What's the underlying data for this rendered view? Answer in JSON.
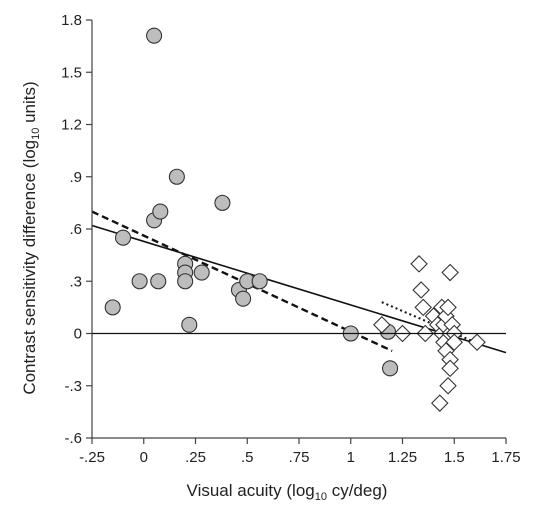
{
  "chart_data": {
    "type": "scatter",
    "xlabel": "Visual acuity (log10 cy/deg)",
    "xlabel_parts": {
      "pre": "Visual acuity (log",
      "sub": "10",
      "post": " cy/deg)"
    },
    "ylabel": "Contrast sensitivity difference (log10 units)",
    "ylabel_parts": {
      "pre": "Contrast sensitivity difference (log",
      "sub": "10",
      "post": " units)"
    },
    "xlim": [
      -0.25,
      1.75
    ],
    "ylim": [
      -0.6,
      1.8
    ],
    "xticks": [
      -0.25,
      0,
      0.25,
      0.5,
      0.75,
      1,
      1.25,
      1.5,
      1.75
    ],
    "xtick_labels": [
      "-.25",
      "0",
      ".25",
      ".5",
      ".75",
      "1",
      "1.25",
      "1.5",
      "1.75"
    ],
    "yticks": [
      -0.6,
      -0.3,
      0,
      0.3,
      0.6,
      0.9,
      1.2,
      1.5,
      1.8
    ],
    "ytick_labels": [
      "-.6",
      "-.3",
      "0",
      ".3",
      ".6",
      ".9",
      "1.2",
      "1.5",
      "1.8"
    ],
    "grid": false,
    "series": [
      {
        "marker": "circle",
        "color": "#bdbdbd",
        "points": [
          [
            -0.15,
            0.15
          ],
          [
            -0.1,
            0.55
          ],
          [
            -0.02,
            0.3
          ],
          [
            0.05,
            1.71
          ],
          [
            0.05,
            0.65
          ],
          [
            0.08,
            0.7
          ],
          [
            0.07,
            0.3
          ],
          [
            0.16,
            0.9
          ],
          [
            0.2,
            0.4
          ],
          [
            0.2,
            0.35
          ],
          [
            0.2,
            0.3
          ],
          [
            0.22,
            0.05
          ],
          [
            0.28,
            0.35
          ],
          [
            0.38,
            0.75
          ],
          [
            0.46,
            0.25
          ],
          [
            0.48,
            0.2
          ],
          [
            0.5,
            0.3
          ],
          [
            0.56,
            0.3
          ],
          [
            1.0,
            0.0
          ],
          [
            1.18,
            0.01
          ],
          [
            1.19,
            -0.2
          ]
        ]
      },
      {
        "marker": "diamond",
        "color": "#ffffff",
        "points": [
          [
            1.15,
            0.05
          ],
          [
            1.25,
            0.0
          ],
          [
            1.33,
            0.4
          ],
          [
            1.34,
            0.25
          ],
          [
            1.35,
            0.15
          ],
          [
            1.36,
            0.0
          ],
          [
            1.4,
            0.1
          ],
          [
            1.42,
            0.05
          ],
          [
            1.43,
            -0.4
          ],
          [
            1.44,
            0.15
          ],
          [
            1.44,
            0.0
          ],
          [
            1.45,
            0.05
          ],
          [
            1.45,
            -0.05
          ],
          [
            1.46,
            0.1
          ],
          [
            1.46,
            -0.1
          ],
          [
            1.47,
            0.15
          ],
          [
            1.47,
            -0.3
          ],
          [
            1.48,
            0.35
          ],
          [
            1.48,
            0.0
          ],
          [
            1.48,
            -0.15
          ],
          [
            1.48,
            -0.2
          ],
          [
            1.49,
            0.05
          ],
          [
            1.5,
            0.0
          ],
          [
            1.5,
            -0.05
          ],
          [
            1.61,
            -0.05
          ]
        ]
      }
    ],
    "lines": [
      {
        "style": "solid",
        "color": "#111111",
        "width": 1.6,
        "from": [
          -0.25,
          0.62
        ],
        "to": [
          1.75,
          -0.11
        ]
      },
      {
        "style": "dashed",
        "color": "#111111",
        "width": 2.4,
        "from": [
          -0.25,
          0.7
        ],
        "to": [
          1.2,
          -0.1
        ]
      },
      {
        "style": "dotted",
        "color": "#111111",
        "width": 2,
        "from": [
          1.15,
          0.18
        ],
        "to": [
          1.62,
          -0.06
        ]
      }
    ],
    "reference_line_y": 0
  }
}
